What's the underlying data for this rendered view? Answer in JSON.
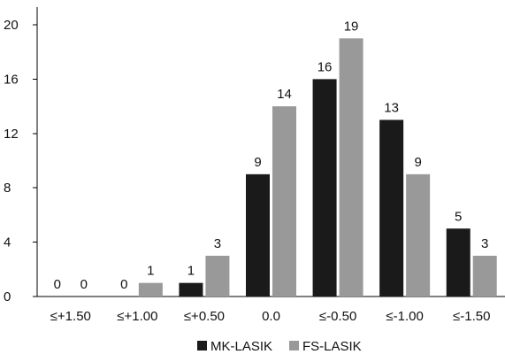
{
  "chart_data": {
    "type": "bar",
    "categories": [
      "≤+1.50",
      "≤+1.00",
      "≤+0.50",
      "0.0",
      "≤-0.50",
      "≤-1.00",
      "≤-1.50"
    ],
    "series": [
      {
        "name": "MK-LASIK",
        "color": "#1a1a1a",
        "values": [
          0,
          0,
          1,
          9,
          16,
          13,
          5
        ]
      },
      {
        "name": "FS-LASIK",
        "color": "#999999",
        "values": [
          0,
          1,
          3,
          14,
          19,
          9,
          3
        ]
      }
    ],
    "title": "",
    "xlabel": "",
    "ylabel": "",
    "ylim": [
      0,
      20
    ],
    "yticks": [
      0,
      4,
      8,
      12,
      16,
      20
    ],
    "grid": false,
    "legend_position": "bottom-center"
  }
}
